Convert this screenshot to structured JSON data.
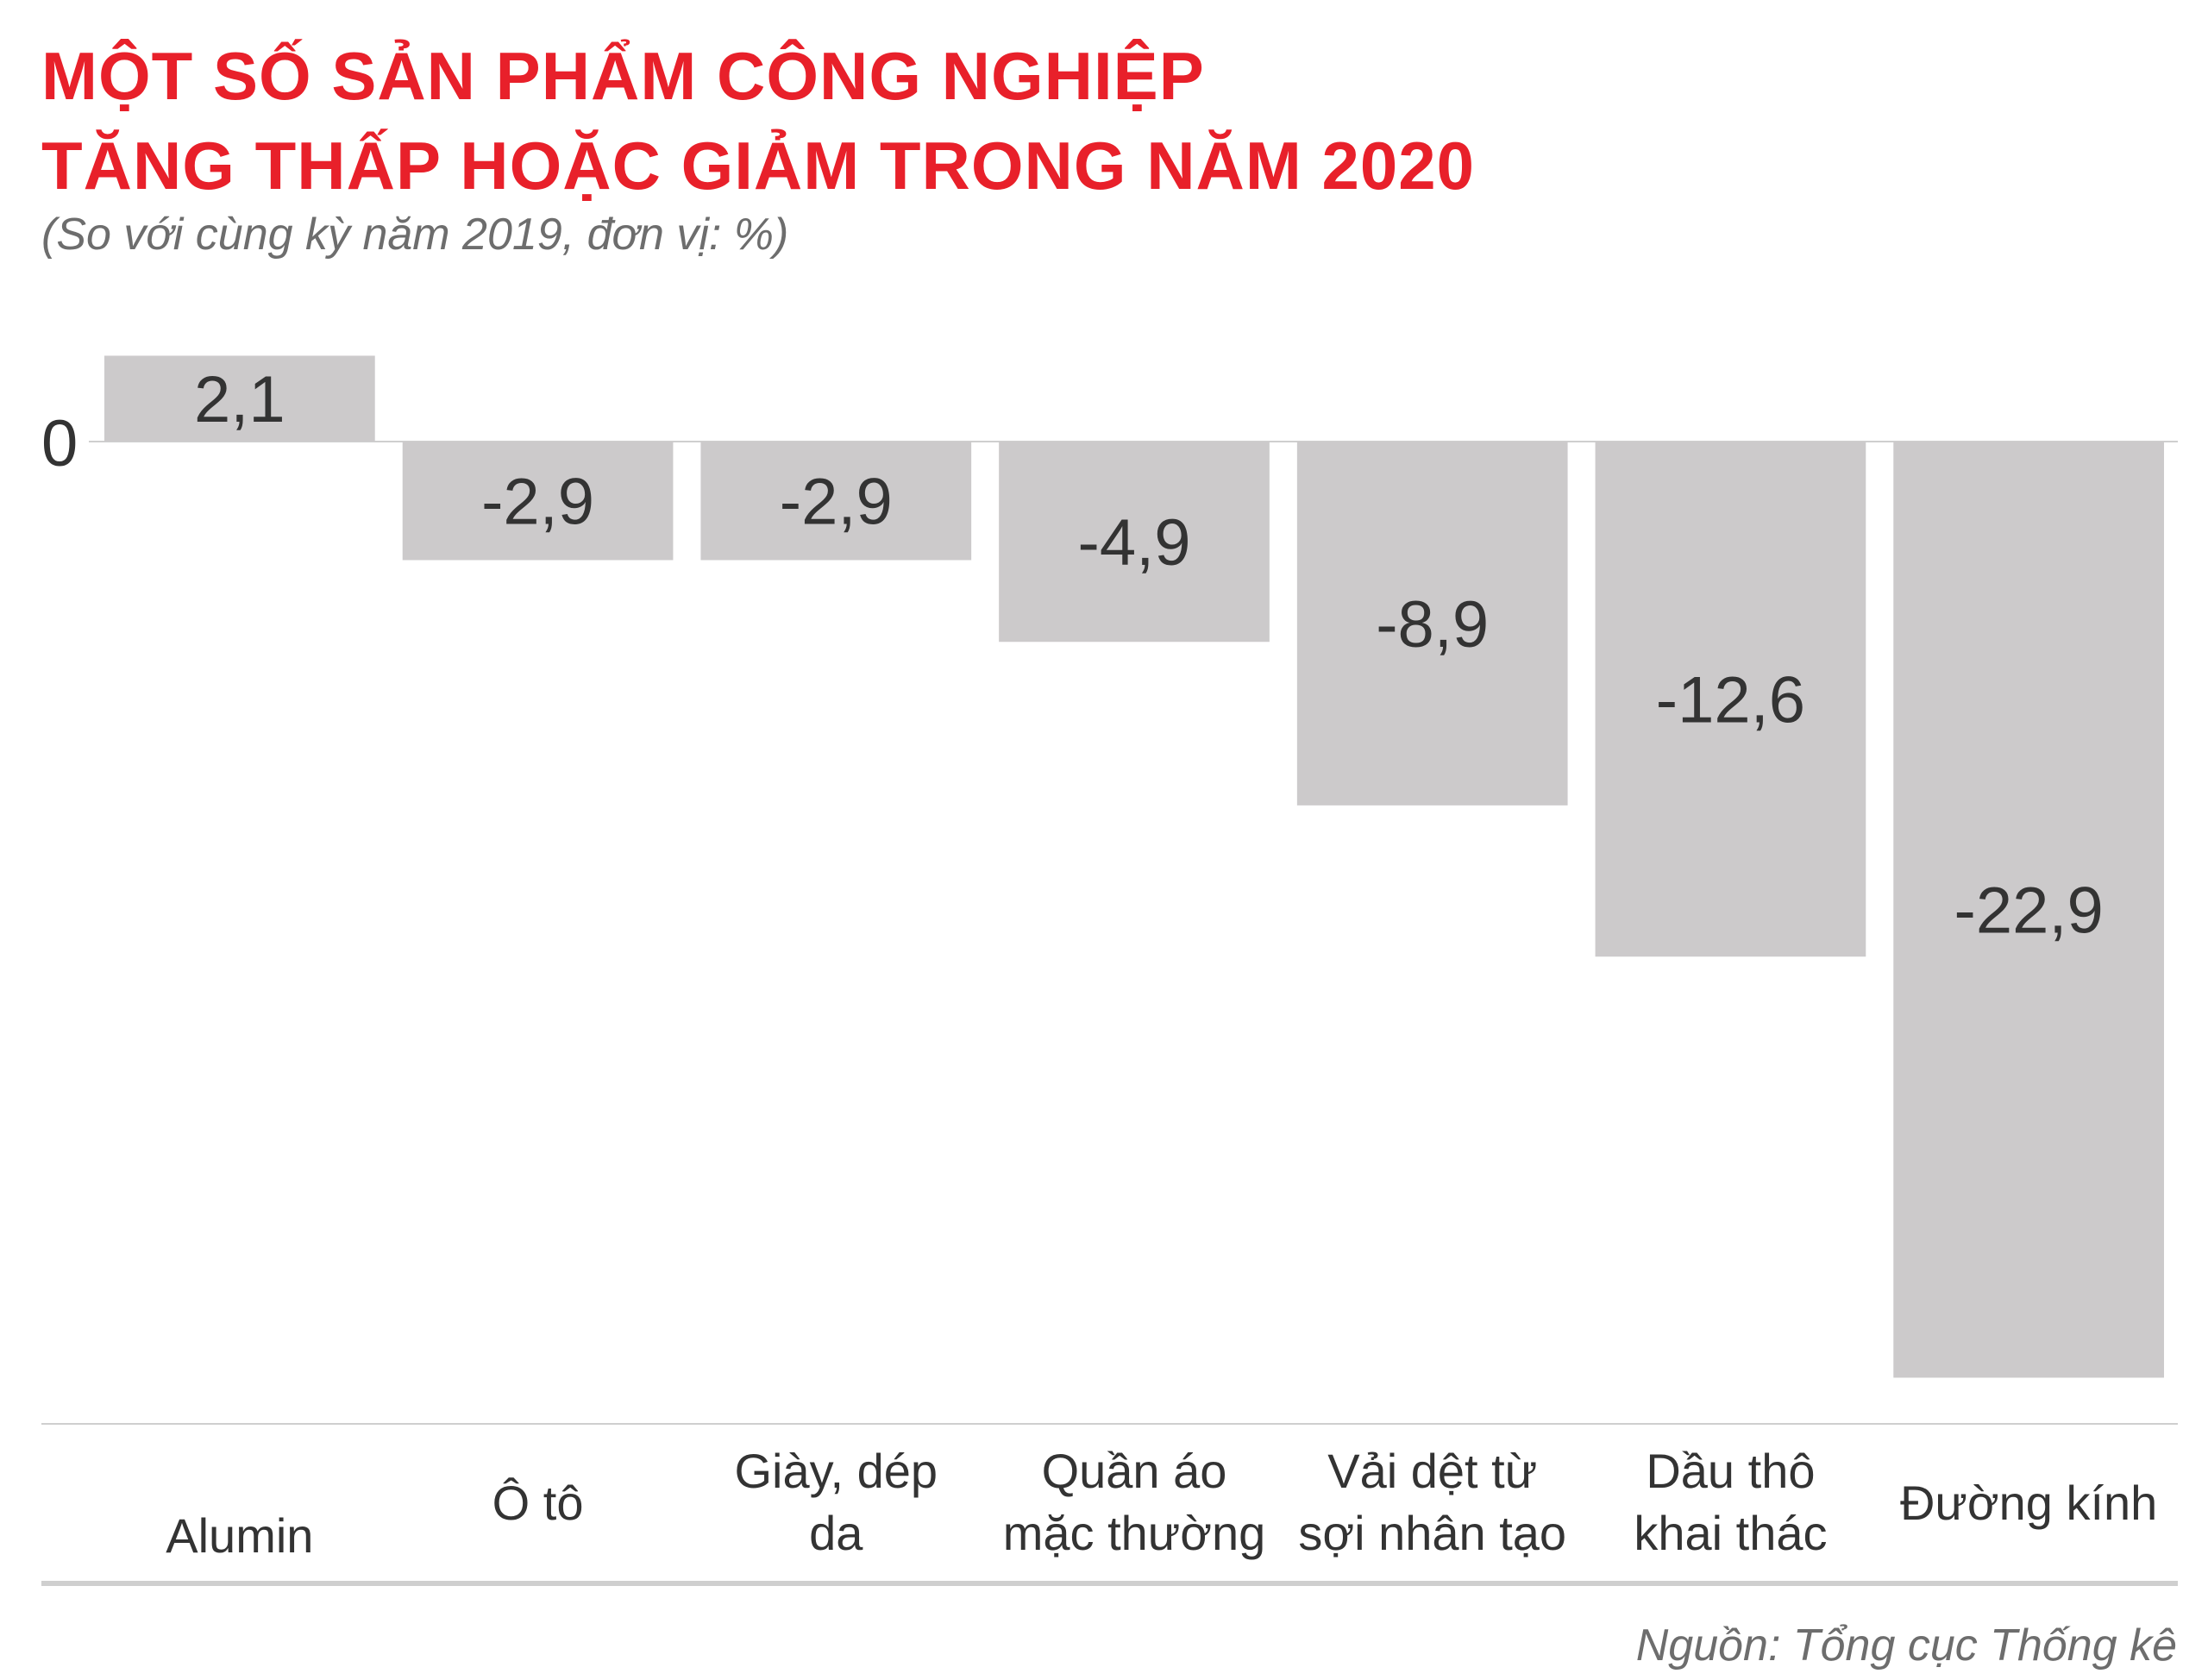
{
  "header": {
    "title_line1": "MỘT SỐ SẢN PHẨM CÔNG NGHIỆP",
    "title_line2": "TĂNG THẤP HOẶC GIẢM TRONG NĂM 2020",
    "subtitle": "(So với cùng kỳ năm 2019, đơn vị: %)"
  },
  "footer": {
    "source": "Nguồn: Tổng cục Thống kê"
  },
  "colors": {
    "title": "#e8202a",
    "bar": "#cccacb",
    "text": "#333333",
    "muted": "#6d6d6d",
    "axis": "#cfcfcf"
  },
  "chart_data": {
    "type": "bar",
    "title": "MỘT SỐ SẢN PHẨM CÔNG NGHIỆP TĂNG THẤP HOẶC GIẢM TRONG NĂM 2020",
    "subtitle": "(So với cùng kỳ năm 2019, đơn vị: %)",
    "categories": [
      [
        "Alumin"
      ],
      [
        "Ô tô"
      ],
      [
        "Giày, dép",
        "da"
      ],
      [
        "Quần áo",
        "mặc thường"
      ],
      [
        "Vải dệt từ",
        "sợi nhân tạo"
      ],
      [
        "Dầu thô",
        "khai thác"
      ],
      [
        "Đường kính"
      ]
    ],
    "values": [
      2.1,
      -2.9,
      -2.9,
      -4.9,
      -8.9,
      -12.6,
      -22.9
    ],
    "value_labels": [
      "2,1",
      "-2,9",
      "-2,9",
      "-4,9",
      "-8,9",
      "-12,6",
      "-22,9"
    ],
    "zero_label": "0",
    "xlabel": "",
    "ylabel": "",
    "ylim": [
      -23,
      2.5
    ],
    "grid": false,
    "legend": "none"
  }
}
